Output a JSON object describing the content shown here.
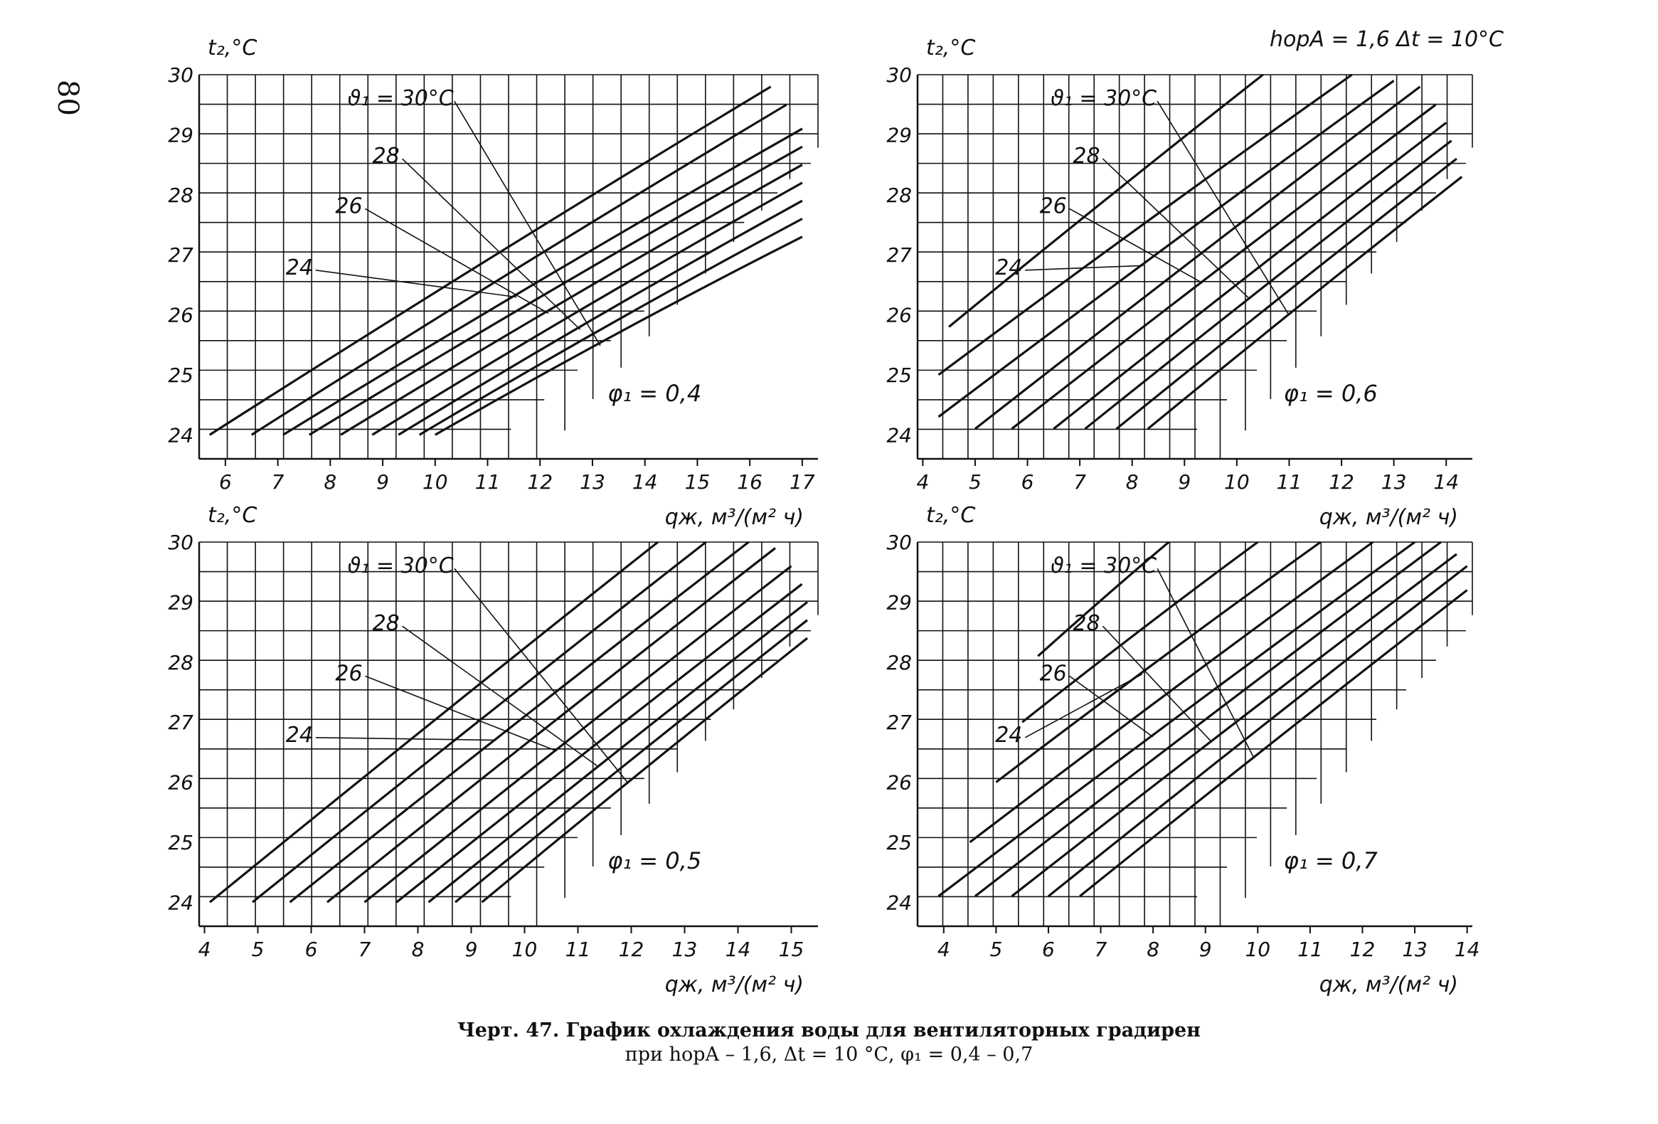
{
  "page": {
    "number": "80"
  },
  "header_note": "h<sub>ор</sub>A = 1,6  Δt = 10°C",
  "header_note_text": "hорA = 1,6  Δt = 10°C",
  "caption": {
    "line1": "Черт. 47. График охлаждения воды для вентиляторных градирен",
    "line2": "при hорA – 1,6, Δt = 10 °С, φ₁ = 0,4 – 0,7"
  },
  "colors": {
    "ink": "#111111",
    "paper": "#ffffff"
  },
  "chart_data": [
    {
      "type": "line",
      "ylabel": "t₂,°C",
      "xlabel": "qж, м³/(м² ч)",
      "xlim": [
        5.5,
        17.3
      ],
      "ylim": [
        23.6,
        30
      ],
      "xticks": [
        6,
        7,
        8,
        9,
        10,
        11,
        12,
        13,
        14,
        15,
        16,
        17
      ],
      "yticks": [
        24,
        25,
        26,
        27,
        28,
        29,
        30
      ],
      "grid": "partial",
      "param_label": "φ₁ = 0,4",
      "curve_labels": [
        {
          "text": "ϑ₁ = 30°C",
          "series": 8
        },
        {
          "text": "28",
          "series": 6
        },
        {
          "text": "26",
          "series": 4
        },
        {
          "text": "24",
          "series": 2
        }
      ],
      "series": [
        {
          "x": [
            5.7,
            16.4
          ],
          "y": [
            24.0,
            29.8
          ]
        },
        {
          "x": [
            6.5,
            16.7
          ],
          "y": [
            24.0,
            29.5
          ]
        },
        {
          "x": [
            7.1,
            17.0
          ],
          "y": [
            24.0,
            29.1
          ]
        },
        {
          "x": [
            7.6,
            17.0
          ],
          "y": [
            24.0,
            28.8
          ]
        },
        {
          "x": [
            8.2,
            17.0
          ],
          "y": [
            24.0,
            28.5
          ]
        },
        {
          "x": [
            8.8,
            17.0
          ],
          "y": [
            24.0,
            28.2
          ]
        },
        {
          "x": [
            9.3,
            17.0
          ],
          "y": [
            24.0,
            27.9
          ]
        },
        {
          "x": [
            9.7,
            17.0
          ],
          "y": [
            24.0,
            27.6
          ]
        },
        {
          "x": [
            10.0,
            17.0
          ],
          "y": [
            24.0,
            27.3
          ]
        }
      ]
    },
    {
      "type": "line",
      "ylabel": "t₂,°C",
      "xlabel": "qж, м³/(м² ч)",
      "xlim": [
        3.9,
        14.5
      ],
      "ylim": [
        23.6,
        30
      ],
      "xticks": [
        4,
        5,
        6,
        7,
        8,
        9,
        10,
        11,
        12,
        13,
        14
      ],
      "yticks": [
        24,
        25,
        26,
        27,
        28,
        29,
        30
      ],
      "grid": "partial",
      "param_label": "φ₁ = 0,6",
      "curve_labels": [
        {
          "text": "ϑ₁ = 30°C",
          "series": 8
        },
        {
          "text": "28",
          "series": 6
        },
        {
          "text": "26",
          "series": 4
        },
        {
          "text": "24",
          "series": 2
        }
      ],
      "series": [
        {
          "x": [
            4.5,
            10.5
          ],
          "y": [
            25.8,
            30.0
          ]
        },
        {
          "x": [
            4.3,
            12.2
          ],
          "y": [
            25.0,
            30.0
          ]
        },
        {
          "x": [
            4.3,
            13.0
          ],
          "y": [
            24.3,
            29.9
          ]
        },
        {
          "x": [
            5.0,
            13.5
          ],
          "y": [
            24.1,
            29.8
          ]
        },
        {
          "x": [
            5.7,
            13.8
          ],
          "y": [
            24.1,
            29.5
          ]
        },
        {
          "x": [
            6.5,
            14.0
          ],
          "y": [
            24.1,
            29.2
          ]
        },
        {
          "x": [
            7.1,
            14.1
          ],
          "y": [
            24.1,
            28.9
          ]
        },
        {
          "x": [
            7.7,
            14.2
          ],
          "y": [
            24.1,
            28.6
          ]
        },
        {
          "x": [
            8.3,
            14.3
          ],
          "y": [
            24.1,
            28.3
          ]
        }
      ]
    },
    {
      "type": "line",
      "ylabel": "t₂,°C",
      "xlabel": "qж, м³/(м² ч)",
      "xlim": [
        3.9,
        15.5
      ],
      "ylim": [
        23.6,
        30
      ],
      "xticks": [
        4,
        5,
        6,
        7,
        8,
        9,
        10,
        11,
        12,
        13,
        14,
        15
      ],
      "yticks": [
        24,
        25,
        26,
        27,
        28,
        29,
        30
      ],
      "grid": "partial",
      "param_label": "φ₁ = 0,5",
      "curve_labels": [
        {
          "text": "ϑ₁ = 30°C",
          "series": 8
        },
        {
          "text": "28",
          "series": 6
        },
        {
          "text": "26",
          "series": 4
        },
        {
          "text": "24",
          "series": 2
        }
      ],
      "series": [
        {
          "x": [
            4.1,
            12.5
          ],
          "y": [
            24.0,
            30.0
          ]
        },
        {
          "x": [
            4.9,
            13.4
          ],
          "y": [
            24.0,
            30.0
          ]
        },
        {
          "x": [
            5.6,
            14.2
          ],
          "y": [
            24.0,
            30.0
          ]
        },
        {
          "x": [
            6.3,
            14.7
          ],
          "y": [
            24.0,
            29.9
          ]
        },
        {
          "x": [
            7.0,
            15.0
          ],
          "y": [
            24.0,
            29.6
          ]
        },
        {
          "x": [
            7.6,
            15.2
          ],
          "y": [
            24.0,
            29.3
          ]
        },
        {
          "x": [
            8.2,
            15.3
          ],
          "y": [
            24.0,
            29.0
          ]
        },
        {
          "x": [
            8.7,
            15.3
          ],
          "y": [
            24.0,
            28.7
          ]
        },
        {
          "x": [
            9.2,
            15.3
          ],
          "y": [
            24.0,
            28.4
          ]
        }
      ]
    },
    {
      "type": "line",
      "ylabel": "t₂,°C",
      "xlabel": "qж, м³/(м² ч)",
      "xlim": [
        3.5,
        14.1
      ],
      "ylim": [
        23.6,
        30
      ],
      "xticks": [
        4,
        5,
        6,
        7,
        8,
        9,
        10,
        11,
        12,
        13,
        14
      ],
      "yticks": [
        24,
        25,
        26,
        27,
        28,
        29,
        30
      ],
      "grid": "partial",
      "param_label": "φ₁ = 0,7",
      "curve_labels": [
        {
          "text": "ϑ₁ = 30°C",
          "series": 8
        },
        {
          "text": "28",
          "series": 6
        },
        {
          "text": "26",
          "series": 4
        },
        {
          "text": "24",
          "series": 2
        }
      ],
      "series": [
        {
          "x": [
            5.8,
            8.3
          ],
          "y": [
            28.1,
            30.0
          ]
        },
        {
          "x": [
            5.5,
            10.0
          ],
          "y": [
            27.0,
            30.0
          ]
        },
        {
          "x": [
            5.0,
            11.2
          ],
          "y": [
            26.0,
            30.0
          ]
        },
        {
          "x": [
            4.5,
            12.2
          ],
          "y": [
            25.0,
            30.0
          ]
        },
        {
          "x": [
            3.9,
            13.0
          ],
          "y": [
            24.1,
            30.0
          ]
        },
        {
          "x": [
            4.6,
            13.5
          ],
          "y": [
            24.1,
            30.0
          ]
        },
        {
          "x": [
            5.3,
            13.8
          ],
          "y": [
            24.1,
            29.8
          ]
        },
        {
          "x": [
            6.0,
            14.0
          ],
          "y": [
            24.1,
            29.6
          ]
        },
        {
          "x": [
            6.6,
            14.0
          ],
          "y": [
            24.1,
            29.2
          ]
        }
      ]
    }
  ]
}
